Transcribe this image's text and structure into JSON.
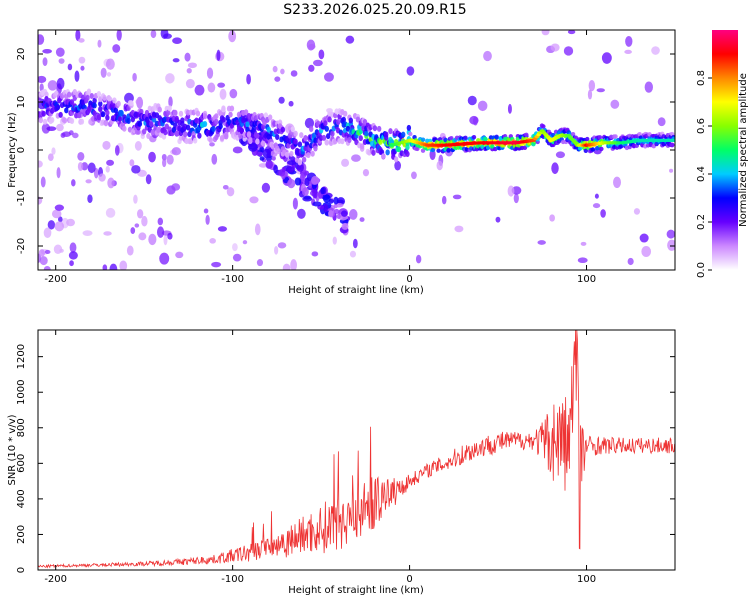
{
  "figure_title": "S233.2026.025.20.09.R15",
  "chart_data": [
    {
      "type": "heatmap",
      "title": "",
      "xlabel": "Height of straight line (km)",
      "ylabel": "Frequency (Hz)",
      "xlim": [
        -210,
        150
      ],
      "ylim": [
        -25,
        25
      ],
      "xticks": [
        -200,
        -100,
        0,
        100
      ],
      "yticks": [
        -20,
        -10,
        0,
        10,
        20
      ],
      "colorbar": {
        "label": "Normalized spectral amplitude",
        "ticks": [
          0.0,
          0.2,
          0.4,
          0.6,
          0.8
        ],
        "range": [
          0,
          1
        ],
        "colormap": [
          "#ffffff",
          "#cc88ff",
          "#6600ff",
          "#0000ff",
          "#00ccff",
          "#00ff66",
          "#88ff00",
          "#ffff00",
          "#ff8800",
          "#ff0000",
          "#ff0080"
        ]
      },
      "ridge": {
        "x": [
          -205,
          -190,
          -180,
          -170,
          -160,
          -150,
          -140,
          -130,
          -120,
          -110,
          -100,
          -90,
          -80,
          -70,
          -60,
          -50,
          -40,
          -30,
          -20,
          -10,
          0,
          10,
          20,
          40,
          60,
          70,
          75,
          80,
          85,
          90,
          95,
          100,
          110,
          120,
          130,
          140,
          150
        ],
        "frequency_hz": [
          9,
          9,
          9,
          8,
          7,
          6,
          6,
          5,
          5,
          5,
          6,
          5,
          4,
          2,
          0,
          4,
          5,
          4,
          2,
          1,
          2,
          1,
          1,
          1.5,
          1.5,
          2,
          4,
          2,
          3,
          3,
          1,
          1,
          1.5,
          1.5,
          2,
          2,
          2
        ],
        "amplitude": [
          0.25,
          0.3,
          0.3,
          0.3,
          0.3,
          0.3,
          0.3,
          0.3,
          0.35,
          0.3,
          0.3,
          0.3,
          0.3,
          0.3,
          0.3,
          0.3,
          0.35,
          0.4,
          0.45,
          0.5,
          0.65,
          0.85,
          0.9,
          0.9,
          0.95,
          0.85,
          0.6,
          0.7,
          0.65,
          0.55,
          0.6,
          0.9,
          0.65,
          0.5,
          0.45,
          0.45,
          0.45
        ]
      }
    },
    {
      "type": "line",
      "title": "",
      "xlabel": "Height of straight line (km)",
      "ylabel": "SNR (10 * v/v)",
      "xlim": [
        -210,
        150
      ],
      "ylim": [
        0,
        1350
      ],
      "xticks": [
        -200,
        -100,
        0,
        100
      ],
      "yticks": [
        0,
        200,
        400,
        600,
        800,
        1000,
        1200
      ],
      "color": "#ee3333",
      "series": [
        {
          "x": [
            -210,
            -190,
            -170,
            -150,
            -130,
            -110,
            -100,
            -90,
            -80,
            -70,
            -60,
            -50,
            -40,
            -30,
            -20,
            -10,
            0,
            10,
            20,
            30,
            40,
            50,
            60,
            70,
            75,
            80,
            85,
            90,
            92,
            95,
            97,
            100,
            110,
            120,
            130,
            140,
            150
          ],
          "y": [
            20,
            25,
            30,
            35,
            45,
            60,
            80,
            100,
            130,
            160,
            200,
            230,
            280,
            320,
            380,
            430,
            500,
            560,
            600,
            650,
            690,
            720,
            730,
            730,
            720,
            730,
            740,
            700,
            950,
            1300,
            600,
            700,
            700,
            700,
            700,
            700,
            700
          ],
          "noise": [
            8,
            8,
            10,
            12,
            18,
            25,
            40,
            55,
            70,
            90,
            110,
            140,
            170,
            170,
            150,
            90,
            40,
            40,
            50,
            60,
            60,
            60,
            50,
            55,
            120,
            220,
            280,
            300,
            300,
            350,
            280,
            60,
            50,
            45,
            45,
            45,
            45
          ]
        }
      ]
    }
  ]
}
